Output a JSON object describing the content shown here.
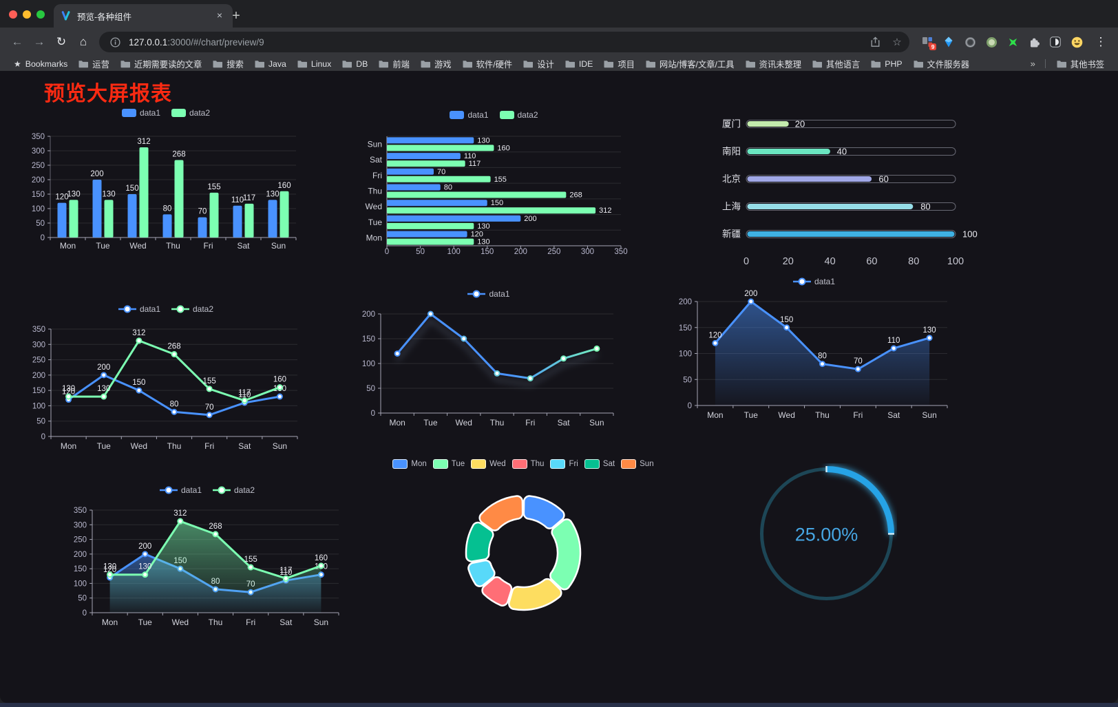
{
  "browser": {
    "tab": {
      "title": "预览-各种组件",
      "close_icon": "×",
      "new_tab_icon": "+"
    },
    "toolbar": {
      "back_icon": "←",
      "forward_icon": "→",
      "reload_icon": "↻",
      "home_icon": "⌂",
      "url_host": "127.0.0.1",
      "url_rest": ":3000/#/chart/preview/9",
      "bookmark_star_icon": "☆",
      "menu_icon": "⋮",
      "extensions": [
        {
          "name": "grid-badge-icon",
          "badge": "9"
        },
        {
          "name": "blue-gem-icon"
        },
        {
          "name": "dark-circle-icon"
        },
        {
          "name": "green-circle-icon"
        },
        {
          "name": "green-sparkle-icon"
        },
        {
          "name": "puzzle-icon"
        },
        {
          "name": "dark-reader-icon"
        },
        {
          "name": "emoji-smiley-icon"
        }
      ]
    },
    "bookmarks_bar": {
      "star_label": "Bookmarks",
      "folders": [
        "运营",
        "近期需要读的文章",
        "搜索",
        "Java",
        "Linux",
        "DB",
        "前端",
        "游戏",
        "软件/硬件",
        "设计",
        "IDE",
        "项目",
        "网站/博客/文章/工具",
        "资讯未整理",
        "其他语言",
        "PHP",
        "文件服务器"
      ],
      "overflow_icon": "»",
      "other_bookmarks": "其他书签"
    }
  },
  "page": {
    "title": "预览大屏报表",
    "title_color": "#fb2a12"
  },
  "palette": {
    "series1": "#4992ff",
    "series2": "#7cffb2",
    "axis_text": "#b9b8ce",
    "value_label": "#ececf2"
  },
  "chart_data": [
    {
      "id": "grouped-bar",
      "type": "bar",
      "categories": [
        "Mon",
        "Tue",
        "Wed",
        "Thu",
        "Fri",
        "Sat",
        "Sun"
      ],
      "series": [
        {
          "name": "data1",
          "color": "#4992ff",
          "values": [
            120,
            200,
            150,
            80,
            70,
            110,
            130
          ]
        },
        {
          "name": "data2",
          "color": "#7cffb2",
          "values": [
            130,
            130,
            312,
            268,
            155,
            117,
            160
          ]
        }
      ],
      "ylim": [
        0,
        350
      ],
      "ytick": 50,
      "value_labels": true,
      "legend_position": "top",
      "grid": true
    },
    {
      "id": "horizontal-bar",
      "type": "bar",
      "orientation": "horizontal",
      "categories": [
        "Mon",
        "Tue",
        "Wed",
        "Thu",
        "Fri",
        "Sat",
        "Sun"
      ],
      "series": [
        {
          "name": "data1",
          "color": "#4992ff",
          "values": [
            120,
            200,
            150,
            80,
            70,
            110,
            130
          ]
        },
        {
          "name": "data2",
          "color": "#7cffb2",
          "values": [
            130,
            130,
            312,
            268,
            155,
            117,
            160
          ]
        }
      ],
      "xlim": [
        0,
        350
      ],
      "xtick": 50,
      "value_labels": true,
      "legend_position": "top",
      "grid": true
    },
    {
      "id": "capsule-bar",
      "type": "bar",
      "subtype": "capsule",
      "categories": [
        "厦门",
        "南阳",
        "北京",
        "上海",
        "新疆"
      ],
      "values": [
        20,
        40,
        60,
        80,
        100
      ],
      "colors": [
        "#c4ebad",
        "#6be6c1",
        "#a0a7e6",
        "#96dee8",
        "#3fb1e3"
      ],
      "xlim": [
        0,
        100
      ],
      "xticks": [
        0,
        20,
        40,
        60,
        80,
        100
      ],
      "value_labels": true
    },
    {
      "id": "line-two-series",
      "type": "line",
      "categories": [
        "Mon",
        "Tue",
        "Wed",
        "Thu",
        "Fri",
        "Sat",
        "Sun"
      ],
      "series": [
        {
          "name": "data1",
          "color": "#4992ff",
          "values": [
            120,
            200,
            150,
            80,
            70,
            110,
            130
          ]
        },
        {
          "name": "data2",
          "color": "#7cffb2",
          "values": [
            130,
            130,
            312,
            268,
            155,
            117,
            160
          ]
        }
      ],
      "ylim": [
        0,
        350
      ],
      "ytick": 50,
      "value_labels": true,
      "legend_position": "top",
      "grid": true
    },
    {
      "id": "line-gradient",
      "type": "line",
      "categories": [
        "Mon",
        "Tue",
        "Wed",
        "Thu",
        "Fri",
        "Sat",
        "Sun"
      ],
      "series": [
        {
          "name": "data1",
          "color": "#4992ff",
          "color_end": "#7cffb2",
          "values": [
            120,
            200,
            150,
            80,
            70,
            110,
            130
          ]
        }
      ],
      "ylim": [
        0,
        200
      ],
      "ytick": 50,
      "value_labels": false,
      "gradient_line": true,
      "shadow": true,
      "legend_position": "top",
      "grid": true
    },
    {
      "id": "line-area-single",
      "type": "line",
      "categories": [
        "Mon",
        "Tue",
        "Wed",
        "Thu",
        "Fri",
        "Sat",
        "Sun"
      ],
      "series": [
        {
          "name": "data1",
          "color": "#4992ff",
          "area": true,
          "values": [
            120,
            200,
            150,
            80,
            70,
            110,
            130
          ]
        }
      ],
      "ylim": [
        0,
        200
      ],
      "ytick": 50,
      "value_labels": true,
      "legend_position": "top",
      "grid": true
    },
    {
      "id": "line-area-two",
      "type": "line",
      "categories": [
        "Mon",
        "Tue",
        "Wed",
        "Thu",
        "Fri",
        "Sat",
        "Sun"
      ],
      "series": [
        {
          "name": "data1",
          "color": "#4992ff",
          "area": true,
          "values": [
            120,
            200,
            150,
            80,
            70,
            110,
            130
          ]
        },
        {
          "name": "data2",
          "color": "#7cffb2",
          "area": true,
          "values": [
            130,
            130,
            312,
            268,
            155,
            117,
            160
          ]
        }
      ],
      "ylim": [
        0,
        350
      ],
      "ytick": 50,
      "value_labels": true,
      "legend_position": "top",
      "grid": true
    },
    {
      "id": "donut-pie",
      "type": "pie",
      "donut": true,
      "categories": [
        "Mon",
        "Tue",
        "Wed",
        "Thu",
        "Fri",
        "Sat",
        "Sun"
      ],
      "values": [
        120,
        200,
        150,
        80,
        70,
        110,
        130
      ],
      "colors": [
        "#4992ff",
        "#7cffb2",
        "#fddd60",
        "#ff6e76",
        "#58d9f9",
        "#05c091",
        "#ff8a45"
      ],
      "legend_position": "top"
    },
    {
      "id": "progress-ring",
      "type": "gauge",
      "value": 25,
      "max": 100,
      "label": "25.00%",
      "color": "#28a3e6",
      "track_color": "#1d4656",
      "text_color": "#46a5e2"
    }
  ]
}
